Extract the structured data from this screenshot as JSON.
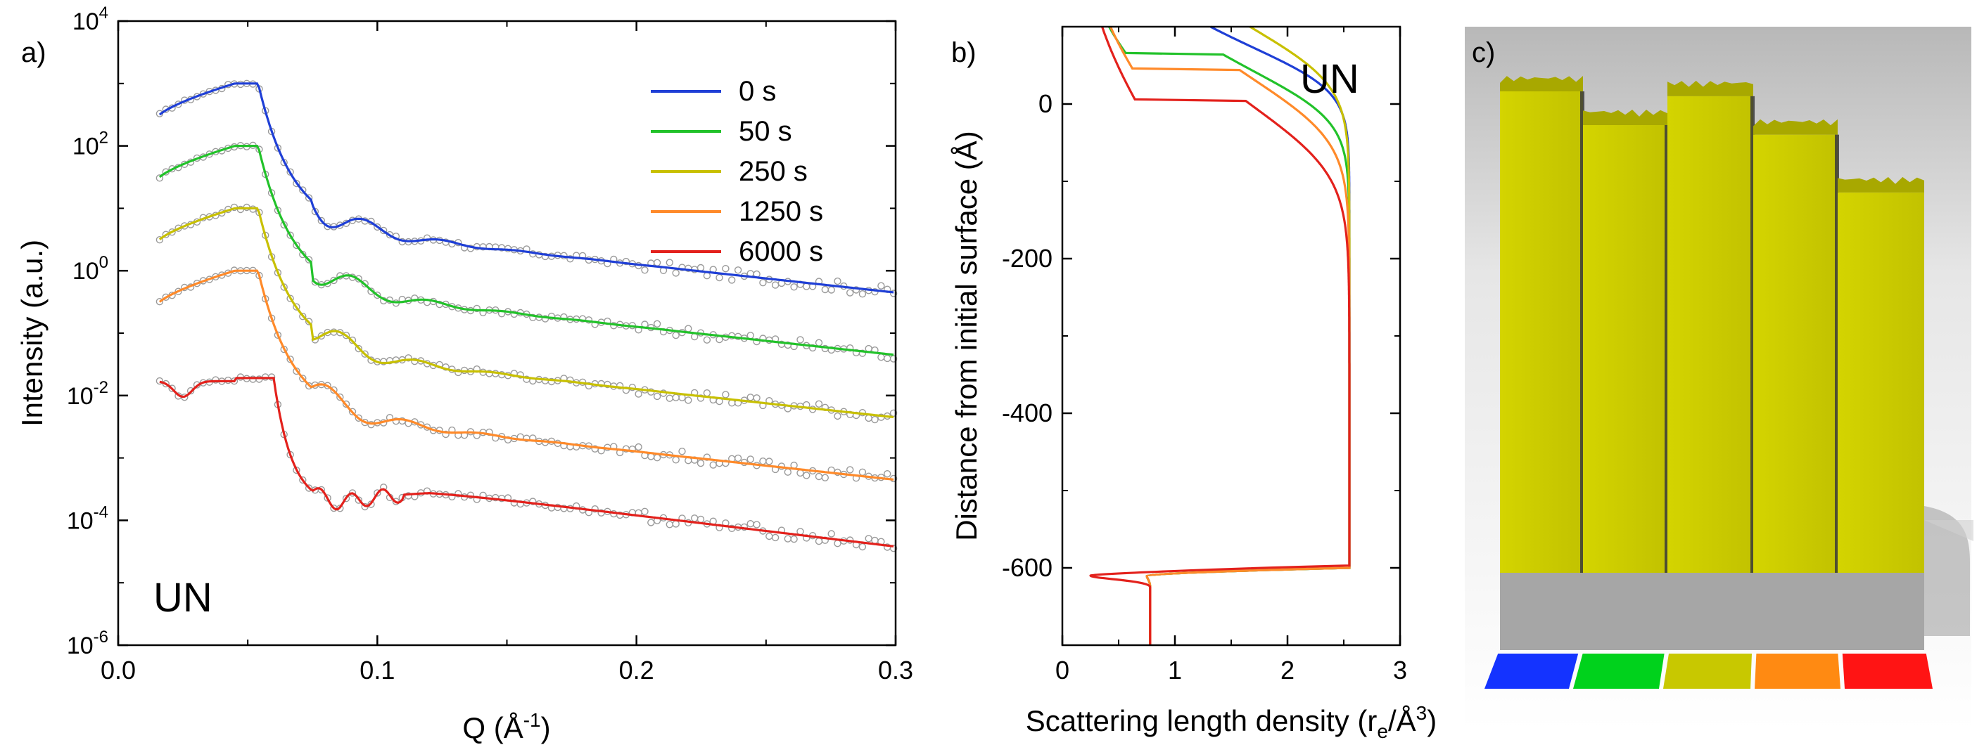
{
  "chart_data": [
    {
      "panel": "a)",
      "type": "line",
      "xlabel": "Q (Å",
      "xlabel_sup": "-1",
      "xlabel_end": ")",
      "ylabel": "Intensity (a.u.)",
      "yscale": "log",
      "xlim": [
        0.0,
        0.3
      ],
      "ylim_exponent": [
        -6,
        4
      ],
      "x_ticks": [
        "0.0",
        "0.1",
        "0.2",
        "0.3"
      ],
      "y_tick_base": "10",
      "y_tick_exponents": [
        "4",
        "2",
        "0",
        "-2",
        "-4",
        "-6"
      ],
      "annotation": "UN",
      "legend_position": "top-right",
      "series": [
        {
          "name": "0 s",
          "color": "#1f3fd6",
          "offset_exp": 3.0
        },
        {
          "name": "50 s",
          "color": "#22c22a",
          "offset_exp": 2.0
        },
        {
          "name": "250 s",
          "color": "#c8c000",
          "offset_exp": 1.0
        },
        {
          "name": "1250 s",
          "color": "#ff8a2a",
          "offset_exp": 0.0
        },
        {
          "name": "6000 s",
          "color": "#e3211c",
          "offset_exp": -1.7
        }
      ],
      "data_markers": "open grey circles"
    },
    {
      "panel": "b)",
      "type": "line",
      "xlabel": "Scattering length density (r",
      "xlabel_sub": "e",
      "xlabel_mid": "/Å",
      "xlabel_sup": "3",
      "xlabel_end": ")",
      "ylabel": "Distance from initial surface (Å)",
      "xlim": [
        0,
        3
      ],
      "ylim": [
        -700,
        100
      ],
      "x_ticks": [
        "0",
        "1",
        "2",
        "3"
      ],
      "y_ticks": [
        "0",
        "-200",
        "-400",
        "-600"
      ],
      "annotation": "UN",
      "series": [
        {
          "name": "0 s",
          "color": "#1f3fd6",
          "surface": 40
        },
        {
          "name": "50 s",
          "color": "#22c22a",
          "surface": 5
        },
        {
          "name": "250 s",
          "color": "#c8c000",
          "surface": 55
        },
        {
          "name": "1250 s",
          "color": "#ff8a2a",
          "surface": -15
        },
        {
          "name": "6000 s",
          "color": "#e3211c",
          "surface": -55
        }
      ]
    },
    {
      "panel": "c)",
      "type": "illustration",
      "columns": [
        {
          "name": "0 s",
          "color": "#1433ff",
          "height": 1.0
        },
        {
          "name": "50 s",
          "color": "#00d21c",
          "height": 0.93
        },
        {
          "name": "250 s",
          "color": "#c8c800",
          "height": 0.99
        },
        {
          "name": "1250 s",
          "color": "#ff8a12",
          "height": 0.91
        },
        {
          "name": "6000 s",
          "color": "#ff1414",
          "height": 0.79
        }
      ],
      "column_fill": "#cccc00"
    }
  ]
}
